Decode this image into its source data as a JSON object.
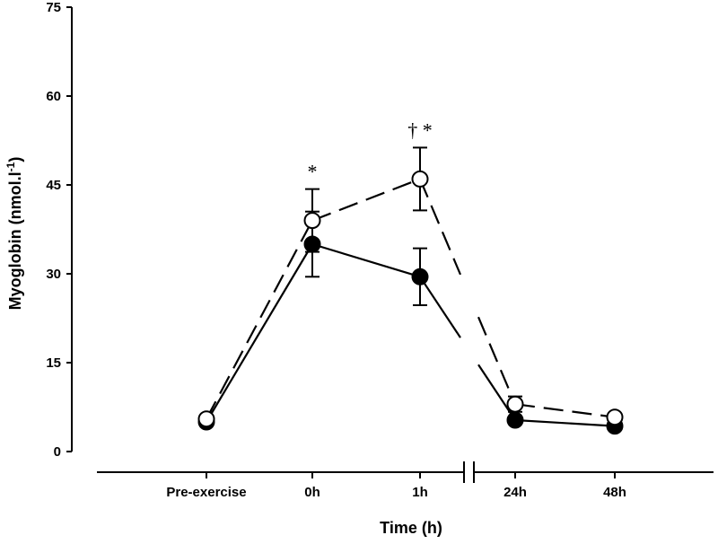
{
  "chart_data": {
    "type": "line",
    "title": "",
    "xlabel": "Time (h)",
    "ylabel": "Myoglobin (nmol.l-1)",
    "ylabel_main": "Myoglobin (nmol.l",
    "ylabel_sup": "-1",
    "ylabel_close": ")",
    "ylim": [
      0,
      75
    ],
    "yticks": [
      0,
      15,
      30,
      45,
      60,
      75
    ],
    "ytick_labels": [
      "0",
      "15",
      "30",
      "45",
      "60",
      "75"
    ],
    "categories": [
      "Pre-exercise",
      "0h",
      "1h",
      "24h",
      "48h"
    ],
    "axis_break_after": "1h",
    "series": [
      {
        "marker": "filled-circle",
        "line_style": "solid",
        "values": [
          5,
          35,
          29.5,
          5.3,
          4.3
        ],
        "error": [
          null,
          5.5,
          4.8,
          null,
          null
        ]
      },
      {
        "marker": "open-circle",
        "line_style": "dashed",
        "values": [
          5.5,
          39,
          46,
          8,
          5.8
        ],
        "error": [
          null,
          5.3,
          5.3,
          1.3,
          null
        ]
      }
    ],
    "annotations": [
      {
        "text": "*",
        "category": "0h"
      },
      {
        "text": "† *",
        "category": "1h"
      }
    ],
    "grid": false,
    "legend": "none"
  }
}
